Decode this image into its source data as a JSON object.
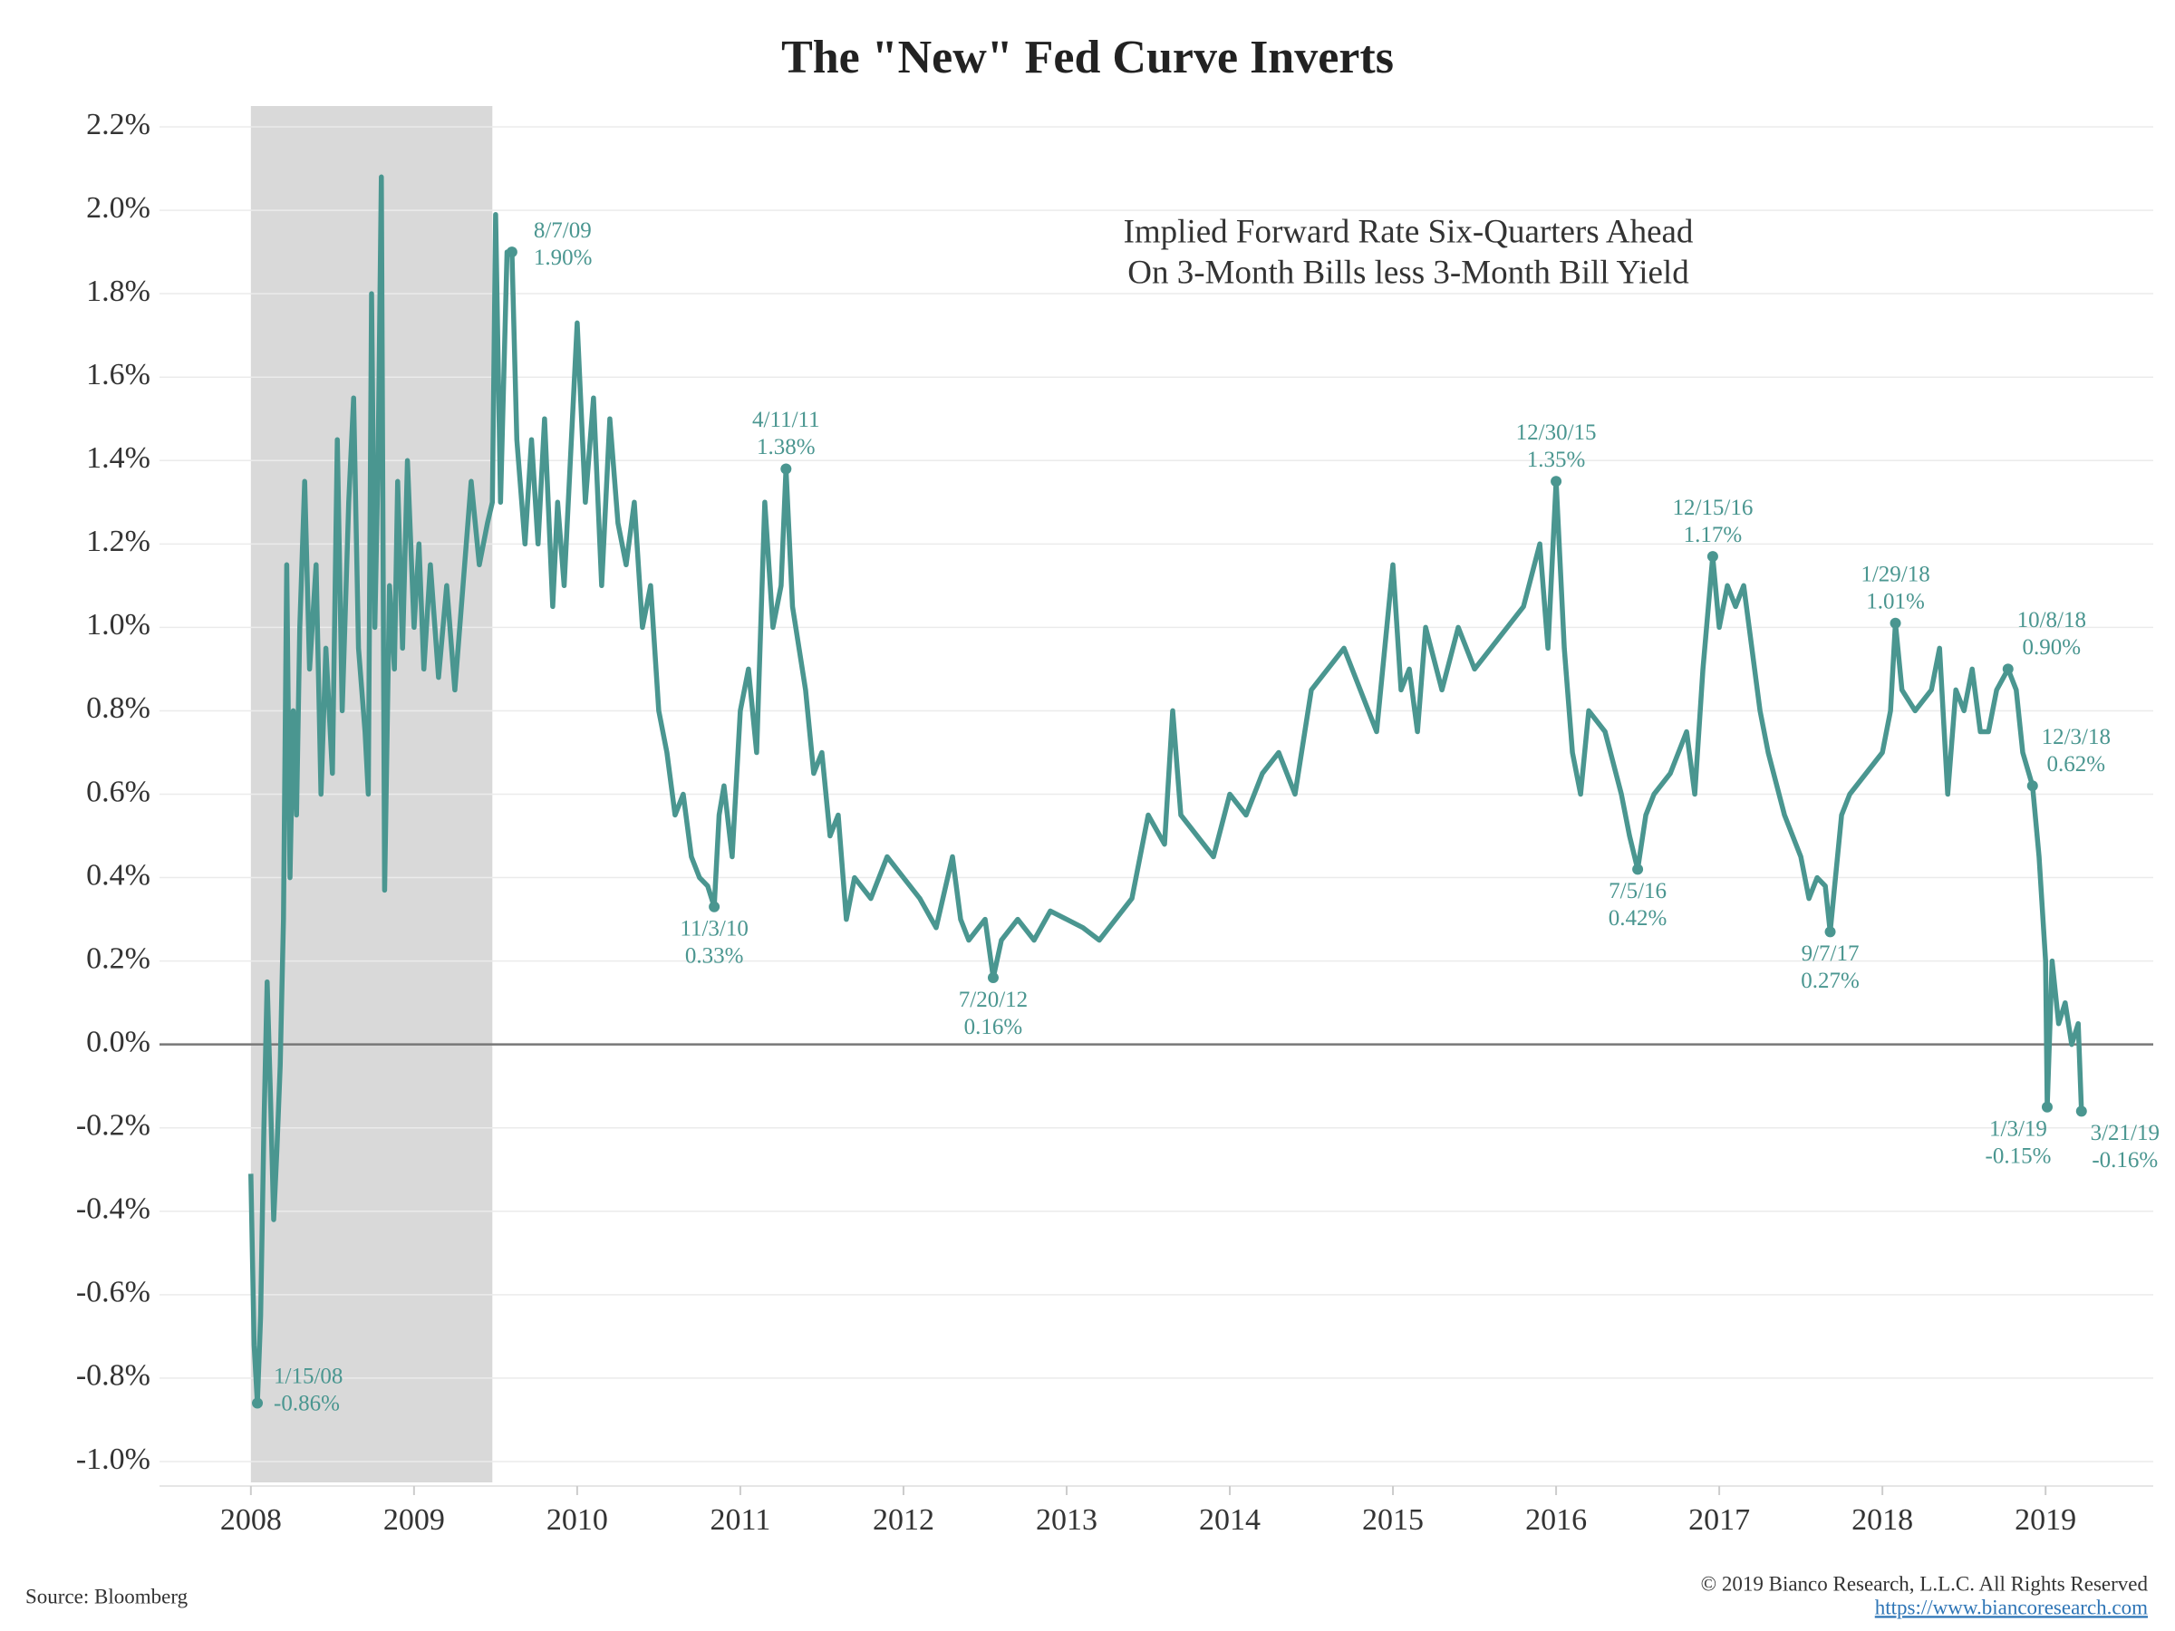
{
  "chart_data": {
    "type": "line",
    "title": "The \"New\" Fed Curve Inverts",
    "subtitle": [
      "Implied Forward Rate Six-Quarters Ahead",
      "On 3-Month Bills less 3-Month Bill Yield"
    ],
    "source": "Source: Bloomberg",
    "copyright": "© 2019 Bianco Research, L.L.C. All Rights Reserved",
    "url": "https://www.biancoresearch.com",
    "xlim": [
      2007.44,
      2019.66
    ],
    "xticks": [
      2008,
      2009,
      2010,
      2011,
      2012,
      2013,
      2014,
      2015,
      2016,
      2017,
      2018,
      2019
    ],
    "ylim": [
      -1.05,
      2.25
    ],
    "yticks": [
      {
        "value": -1.0,
        "label": "-1.0%"
      },
      {
        "value": -0.8,
        "label": "-0.8%"
      },
      {
        "value": -0.6,
        "label": "-0.6%"
      },
      {
        "value": -0.4,
        "label": "-0.4%"
      },
      {
        "value": -0.2,
        "label": "-0.2%"
      },
      {
        "value": 0,
        "label": "0.0%"
      },
      {
        "value": 0.2,
        "label": "0.2%"
      },
      {
        "value": 0.4,
        "label": "0.4%"
      },
      {
        "value": 0.6,
        "label": "0.6%"
      },
      {
        "value": 0.8,
        "label": "0.8%"
      },
      {
        "value": 1.0,
        "label": "1.0%"
      },
      {
        "value": 1.2,
        "label": "1.2%"
      },
      {
        "value": 1.4,
        "label": "1.4%"
      },
      {
        "value": 1.6,
        "label": "1.6%"
      },
      {
        "value": 1.8,
        "label": "1.8%"
      },
      {
        "value": 2.0,
        "label": "2.0%"
      },
      {
        "value": 2.2,
        "label": "2.2%"
      }
    ],
    "grid": true,
    "shaded_band": {
      "x": [
        2008.0,
        2009.48
      ],
      "color": "#d9d9d9"
    },
    "series": [
      {
        "color": "#4a9690",
        "x": [
          2008.0,
          2008.02,
          2008.04,
          2008.06,
          2008.08,
          2008.1,
          2008.12,
          2008.14,
          2008.16,
          2008.18,
          2008.2,
          2008.22,
          2008.24,
          2008.26,
          2008.28,
          2008.3,
          2008.33,
          2008.36,
          2008.4,
          2008.43,
          2008.46,
          2008.5,
          2008.53,
          2008.56,
          2008.6,
          2008.63,
          2008.66,
          2008.7,
          2008.72,
          2008.74,
          2008.76,
          2008.78,
          2008.8,
          2008.82,
          2008.85,
          2008.88,
          2008.9,
          2008.93,
          2008.96,
          2009.0,
          2009.03,
          2009.06,
          2009.1,
          2009.15,
          2009.2,
          2009.25,
          2009.3,
          2009.35,
          2009.4,
          2009.45,
          2009.48,
          2009.5,
          2009.53,
          2009.57,
          2009.6,
          2009.63,
          2009.68,
          2009.72,
          2009.76,
          2009.8,
          2009.85,
          2009.88,
          2009.92,
          2010.0,
          2010.05,
          2010.1,
          2010.15,
          2010.2,
          2010.25,
          2010.3,
          2010.35,
          2010.4,
          2010.45,
          2010.5,
          2010.55,
          2010.6,
          2010.65,
          2010.7,
          2010.75,
          2010.8,
          2010.84,
          2010.87,
          2010.9,
          2010.95,
          2011.0,
          2011.05,
          2011.1,
          2011.15,
          2011.2,
          2011.25,
          2011.28,
          2011.32,
          2011.36,
          2011.4,
          2011.45,
          2011.5,
          2011.55,
          2011.6,
          2011.65,
          2011.7,
          2011.8,
          2011.9,
          2012.0,
          2012.1,
          2012.2,
          2012.3,
          2012.35,
          2012.4,
          2012.5,
          2012.55,
          2012.6,
          2012.7,
          2012.8,
          2012.9,
          2013.0,
          2013.1,
          2013.2,
          2013.3,
          2013.4,
          2013.5,
          2013.6,
          2013.65,
          2013.7,
          2013.8,
          2013.9,
          2014.0,
          2014.1,
          2014.2,
          2014.3,
          2014.4,
          2014.5,
          2014.6,
          2014.7,
          2014.8,
          2014.9,
          2015.0,
          2015.05,
          2015.1,
          2015.15,
          2015.2,
          2015.3,
          2015.4,
          2015.5,
          2015.6,
          2015.7,
          2015.8,
          2015.9,
          2015.95,
          2016.0,
          2016.05,
          2016.1,
          2016.15,
          2016.2,
          2016.3,
          2016.4,
          2016.45,
          2016.5,
          2016.55,
          2016.6,
          2016.7,
          2016.8,
          2016.85,
          2016.9,
          2016.96,
          2017.0,
          2017.05,
          2017.1,
          2017.15,
          2017.2,
          2017.25,
          2017.3,
          2017.4,
          2017.5,
          2017.55,
          2017.6,
          2017.65,
          2017.68,
          2017.75,
          2017.8,
          2017.9,
          2018.0,
          2018.05,
          2018.08,
          2018.12,
          2018.2,
          2018.3,
          2018.35,
          2018.4,
          2018.45,
          2018.5,
          2018.55,
          2018.6,
          2018.65,
          2018.7,
          2018.77,
          2018.82,
          2018.86,
          2018.92,
          2018.96,
          2019.0,
          2019.01,
          2019.04,
          2019.08,
          2019.12,
          2019.16,
          2019.2,
          2019.22
        ],
        "values": [
          -0.31,
          -0.72,
          -0.86,
          -0.65,
          -0.2,
          0.15,
          -0.12,
          -0.42,
          -0.25,
          -0.05,
          0.3,
          1.15,
          0.4,
          0.8,
          0.55,
          1.0,
          1.35,
          0.9,
          1.15,
          0.6,
          0.95,
          0.65,
          1.45,
          0.8,
          1.3,
          1.55,
          0.95,
          0.75,
          0.6,
          1.8,
          1.0,
          1.4,
          2.08,
          0.37,
          1.1,
          0.9,
          1.35,
          0.95,
          1.4,
          1.0,
          1.2,
          0.9,
          1.15,
          0.88,
          1.1,
          0.85,
          1.1,
          1.35,
          1.15,
          1.25,
          1.3,
          1.99,
          1.3,
          1.9,
          1.9,
          1.45,
          1.2,
          1.45,
          1.2,
          1.5,
          1.05,
          1.3,
          1.1,
          1.73,
          1.3,
          1.55,
          1.1,
          1.5,
          1.25,
          1.15,
          1.3,
          1.0,
          1.1,
          0.8,
          0.7,
          0.55,
          0.6,
          0.45,
          0.4,
          0.38,
          0.33,
          0.55,
          0.62,
          0.45,
          0.8,
          0.9,
          0.7,
          1.3,
          1.0,
          1.1,
          1.38,
          1.05,
          0.95,
          0.85,
          0.65,
          0.7,
          0.5,
          0.55,
          0.3,
          0.4,
          0.35,
          0.45,
          0.4,
          0.35,
          0.28,
          0.45,
          0.3,
          0.25,
          0.3,
          0.16,
          0.25,
          0.3,
          0.25,
          0.32,
          0.3,
          0.28,
          0.25,
          0.3,
          0.35,
          0.55,
          0.48,
          0.8,
          0.55,
          0.5,
          0.45,
          0.6,
          0.55,
          0.65,
          0.7,
          0.6,
          0.85,
          0.9,
          0.95,
          0.85,
          0.75,
          1.15,
          0.85,
          0.9,
          0.75,
          1.0,
          0.85,
          1.0,
          0.9,
          0.95,
          1.0,
          1.05,
          1.2,
          0.95,
          1.35,
          0.95,
          0.7,
          0.6,
          0.8,
          0.75,
          0.6,
          0.5,
          0.42,
          0.55,
          0.6,
          0.65,
          0.75,
          0.6,
          0.9,
          1.17,
          1.0,
          1.1,
          1.05,
          1.1,
          0.95,
          0.8,
          0.7,
          0.55,
          0.45,
          0.35,
          0.4,
          0.38,
          0.27,
          0.55,
          0.6,
          0.65,
          0.7,
          0.8,
          1.01,
          0.85,
          0.8,
          0.85,
          0.95,
          0.6,
          0.85,
          0.8,
          0.9,
          0.75,
          0.75,
          0.85,
          0.9,
          0.85,
          0.7,
          0.62,
          0.45,
          0.2,
          -0.15,
          0.2,
          0.05,
          0.1,
          0.0,
          0.05,
          -0.16
        ]
      }
    ],
    "annotations": [
      {
        "label": "1/15/08",
        "x": 2008.04,
        "value": -0.86,
        "value_label": "-0.86%"
      },
      {
        "label": "8/7/09",
        "x": 2009.6,
        "value": 1.9,
        "value_label": "1.90%"
      },
      {
        "label": "11/3/10",
        "x": 2010.84,
        "value": 0.33,
        "value_label": "0.33%"
      },
      {
        "label": "4/11/11",
        "x": 2011.28,
        "value": 1.38,
        "value_label": "1.38%"
      },
      {
        "label": "7/20/12",
        "x": 2012.55,
        "value": 0.16,
        "value_label": "0.16%"
      },
      {
        "label": "12/30/15",
        "x": 2016.0,
        "value": 1.35,
        "value_label": "1.35%"
      },
      {
        "label": "7/5/16",
        "x": 2016.5,
        "value": 0.42,
        "value_label": "0.42%"
      },
      {
        "label": "12/15/16",
        "x": 2016.96,
        "value": 1.17,
        "value_label": "1.17%"
      },
      {
        "label": "9/7/17",
        "x": 2017.68,
        "value": 0.27,
        "value_label": "0.27%"
      },
      {
        "label": "1/29/18",
        "x": 2018.08,
        "value": 1.01,
        "value_label": "1.01%"
      },
      {
        "label": "10/8/18",
        "x": 2018.77,
        "value": 0.9,
        "value_label": "0.90%"
      },
      {
        "label": "12/3/18",
        "x": 2018.92,
        "value": 0.62,
        "value_label": "0.62%"
      },
      {
        "label": "1/3/19",
        "x": 2019.01,
        "value": -0.15,
        "value_label": "-0.15%"
      },
      {
        "label": "3/21/19",
        "x": 2019.22,
        "value": -0.16,
        "value_label": "-0.16%"
      }
    ]
  }
}
